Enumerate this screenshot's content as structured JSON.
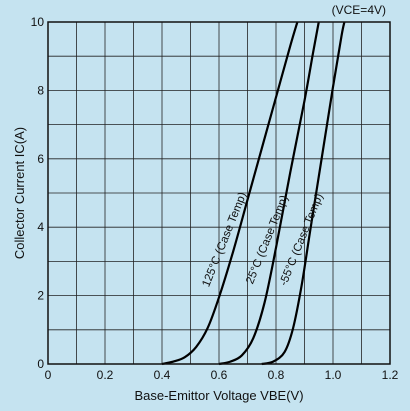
{
  "chart_data": {
    "type": "line",
    "title": "",
    "condition_label": "(VCE=4V)",
    "xlabel": "Base-Emittor Voltage VBE(V)",
    "ylabel": "Collector Current IC(A)",
    "xlim": [
      0,
      1.2
    ],
    "ylim": [
      0,
      10
    ],
    "x_ticks": [
      0,
      0.2,
      0.4,
      0.6,
      0.8,
      1.0,
      1.2
    ],
    "x_tick_labels": [
      "0",
      "0.2",
      "0.4",
      "0.6",
      "0.8",
      "1.0",
      "1.2"
    ],
    "y_ticks": [
      0,
      2,
      4,
      6,
      8,
      10
    ],
    "y_tick_labels": [
      "0",
      "2",
      "4",
      "6",
      "8",
      "10"
    ],
    "grid": true,
    "series": [
      {
        "name": "125°C (Case Temp)",
        "points": [
          [
            0.4,
            0.0
          ],
          [
            0.44,
            0.07
          ],
          [
            0.48,
            0.2
          ],
          [
            0.52,
            0.5
          ],
          [
            0.56,
            1.05
          ],
          [
            0.6,
            1.95
          ],
          [
            0.65,
            3.3
          ],
          [
            0.7,
            4.8
          ],
          [
            0.75,
            6.3
          ],
          [
            0.8,
            7.8
          ],
          [
            0.85,
            9.3
          ],
          [
            0.875,
            10.0
          ]
        ]
      },
      {
        "name": "25°C (Case Temp)",
        "points": [
          [
            0.6,
            0.0
          ],
          [
            0.64,
            0.07
          ],
          [
            0.68,
            0.25
          ],
          [
            0.72,
            0.75
          ],
          [
            0.76,
            1.8
          ],
          [
            0.8,
            3.4
          ],
          [
            0.85,
            5.6
          ],
          [
            0.9,
            7.7
          ],
          [
            0.93,
            9.1
          ],
          [
            0.95,
            10.0
          ]
        ]
      },
      {
        "name": "-55°C (Case Temp)",
        "points": [
          [
            0.75,
            0.0
          ],
          [
            0.79,
            0.07
          ],
          [
            0.83,
            0.35
          ],
          [
            0.86,
            1.05
          ],
          [
            0.89,
            2.3
          ],
          [
            0.92,
            3.9
          ],
          [
            0.96,
            6.0
          ],
          [
            1.0,
            8.1
          ],
          [
            1.03,
            9.6
          ],
          [
            1.04,
            10.0
          ]
        ]
      }
    ],
    "curve_labels": [
      {
        "text": "125°C (Case Temp)",
        "x": 0.63,
        "y": 3.6
      },
      {
        "text": "25°C (Case Temp)",
        "x": 0.78,
        "y": 3.6
      },
      {
        "text": "-55°C (Case Temp)",
        "x": 0.9,
        "y": 3.6
      }
    ]
  }
}
